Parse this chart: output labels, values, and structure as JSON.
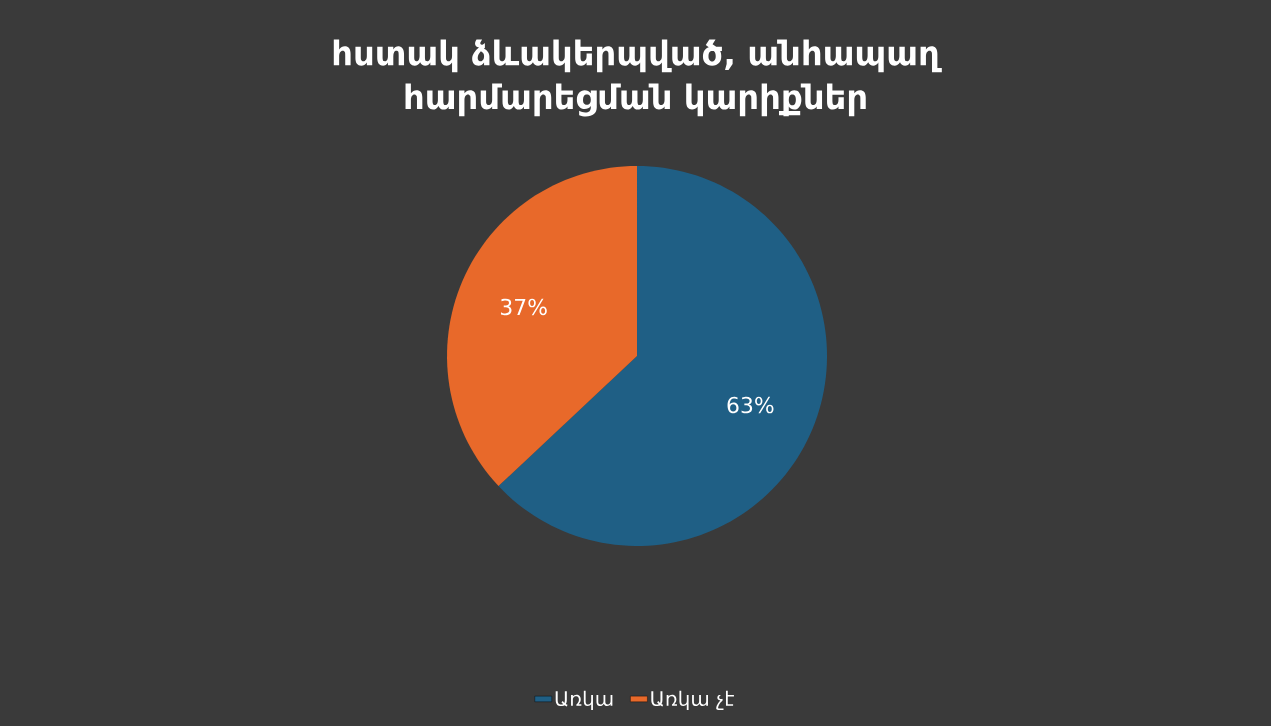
{
  "chart_data": {
    "type": "pie",
    "title": "հստակ ձևակերպված, անհապաղ հարմարեցման կարիքներ",
    "categories": [
      "Առկա",
      "Առկա չէ"
    ],
    "values": [
      63,
      37
    ],
    "colors": [
      "#1f5f85",
      "#e8692a"
    ],
    "value_labels": [
      "63%",
      "37%"
    ],
    "legend": "bottom"
  }
}
